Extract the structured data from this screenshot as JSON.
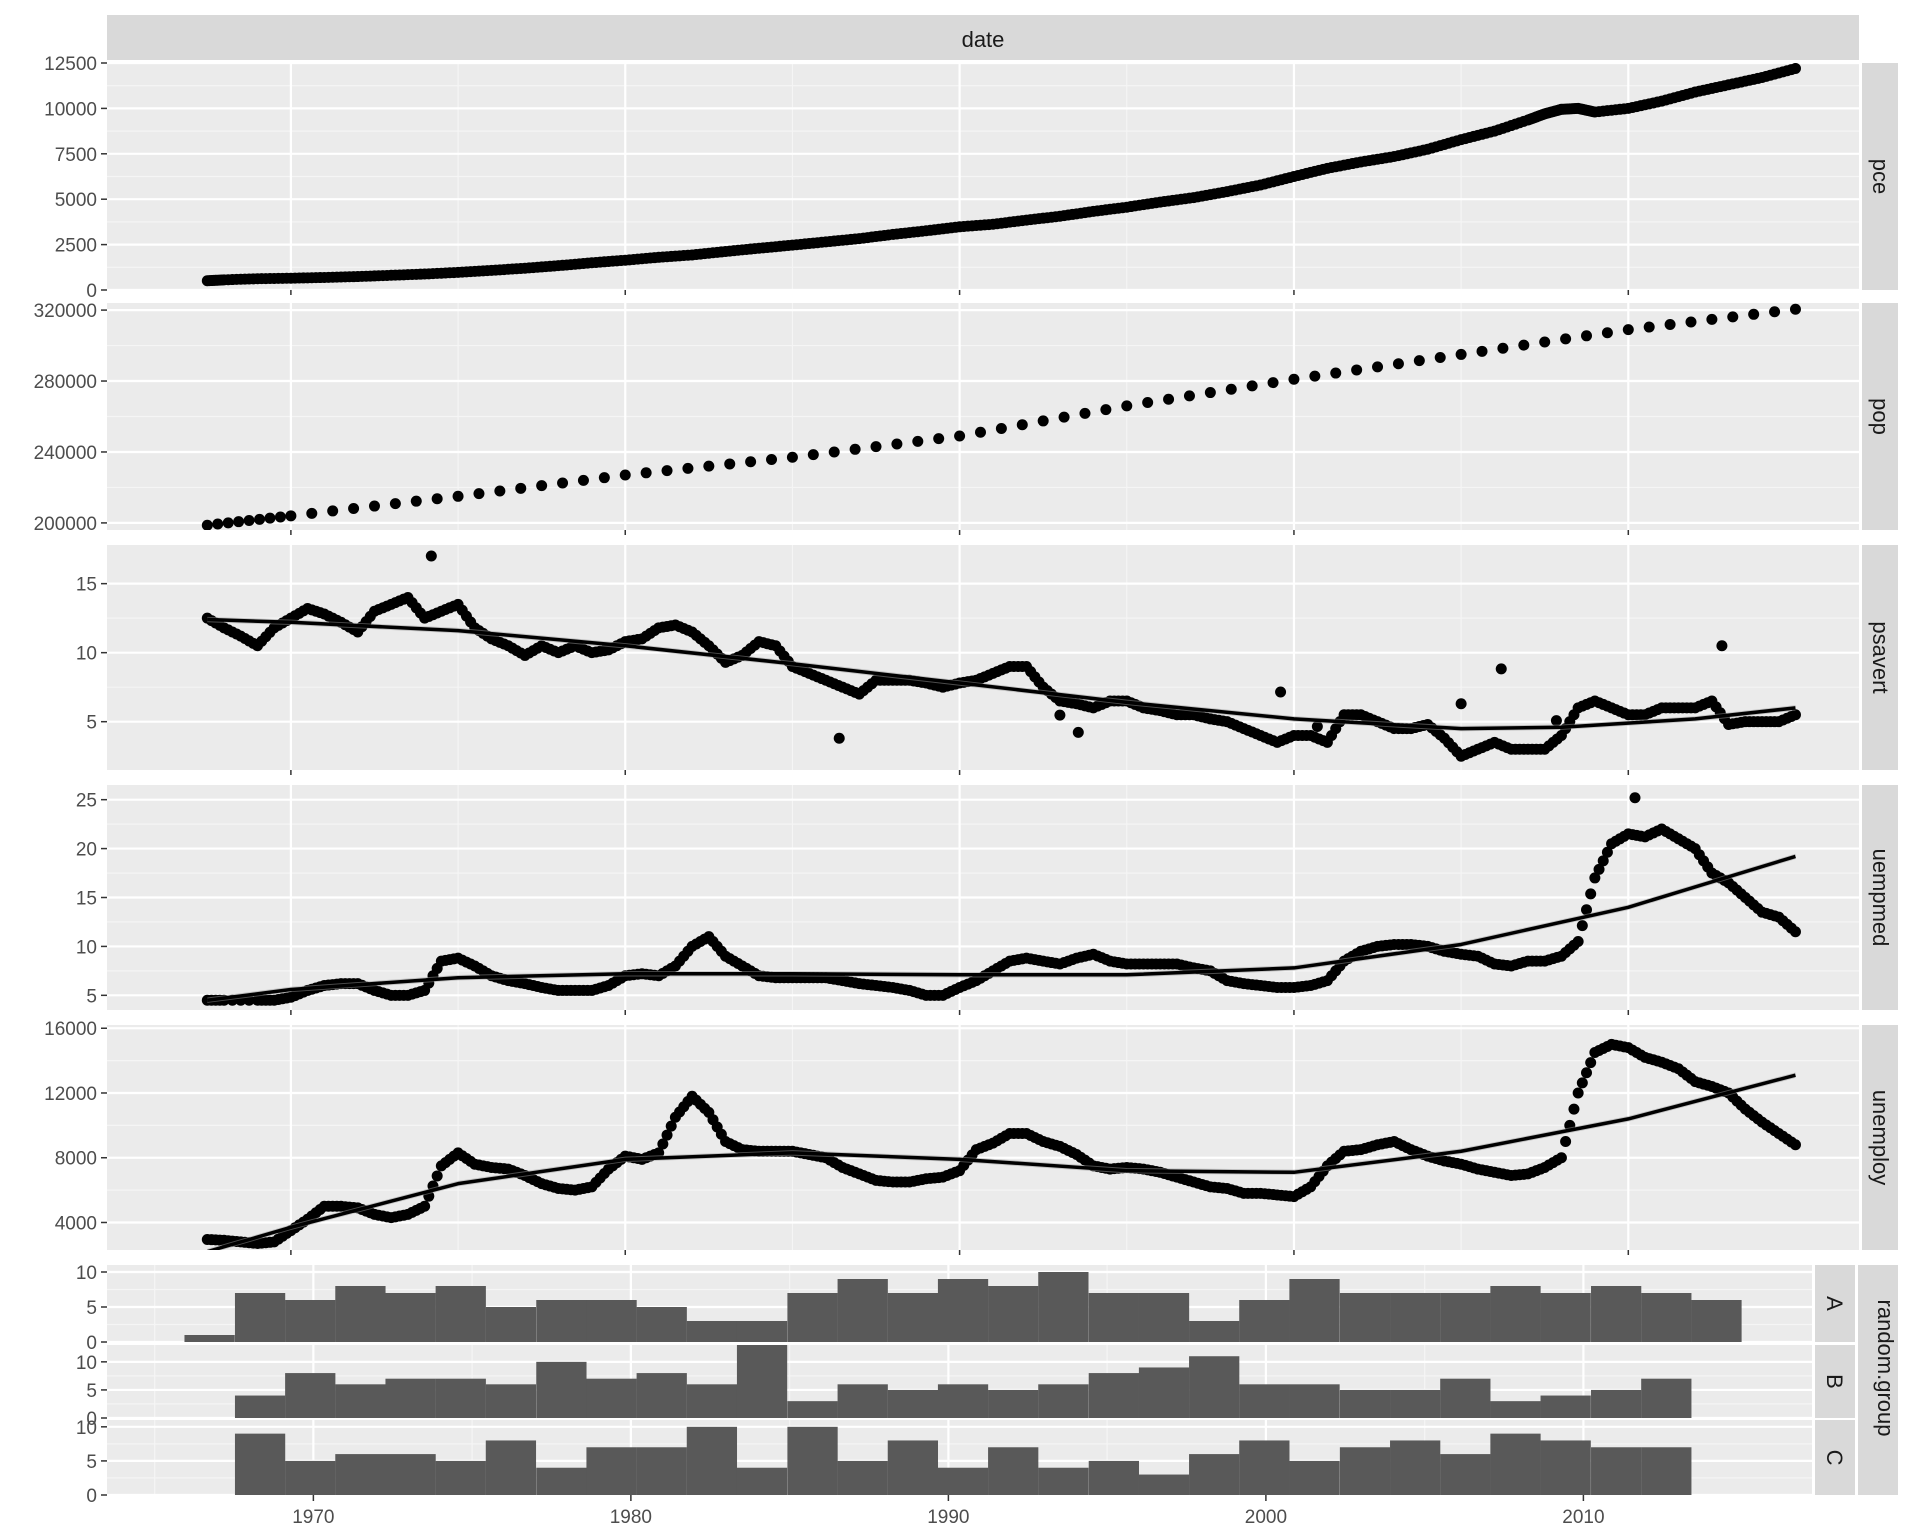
{
  "chart_data": {
    "type": "scatter",
    "title": "",
    "x_axis": {
      "label": "",
      "unit": "year",
      "ticks": [
        1970,
        1980,
        1990,
        2000,
        2010
      ]
    },
    "top_strip": "date",
    "grid": true,
    "scatter_panels": [
      {
        "name": "pce",
        "ylim": [
          0,
          12500
        ],
        "yticks": [
          0,
          2500,
          5000,
          7500,
          10000,
          12500
        ],
        "ytick_labels": [
          "0",
          "2500",
          "5000",
          "7500",
          "10000",
          "12500"
        ],
        "smooth": false,
        "points_x": [
          1967.5,
          1968,
          1969,
          1970,
          1971,
          1972,
          1973,
          1974,
          1975,
          1976,
          1977,
          1978,
          1979,
          1980,
          1981,
          1982,
          1983,
          1984,
          1985,
          1986,
          1987,
          1988,
          1989,
          1990,
          1991,
          1992,
          1993,
          1994,
          1995,
          1996,
          1997,
          1998,
          1999,
          2000,
          2001,
          2002,
          2003,
          2004,
          2005,
          2006,
          2007,
          2007.5,
          2008,
          2008.5,
          2009,
          2010,
          2011,
          2012,
          2013,
          2014,
          2015
        ],
        "points_y": [
          507,
          560,
          620,
          650,
          690,
          740,
          810,
          880,
          970,
          1080,
          1200,
          1340,
          1500,
          1640,
          1800,
          1930,
          2120,
          2300,
          2470,
          2650,
          2830,
          3060,
          3260,
          3480,
          3620,
          3850,
          4060,
          4330,
          4560,
          4840,
          5090,
          5420,
          5780,
          6250,
          6700,
          7050,
          7350,
          7750,
          8280,
          8750,
          9360,
          9700,
          9950,
          10000,
          9800,
          10000,
          10400,
          10900,
          11300,
          11700,
          12200
        ],
        "fit_x": [],
        "fit_y": []
      },
      {
        "name": "pop",
        "ylim": [
          196000,
          324000
        ],
        "yticks": [
          200000,
          240000,
          280000,
          320000
        ],
        "ytick_labels": [
          "200000",
          "240000",
          "280000",
          "320000"
        ],
        "smooth": false,
        "points_x": [
          1967.5,
          1970,
          1975,
          1980,
          1985,
          1990,
          1995,
          2000,
          2005,
          2010,
          2015
        ],
        "points_y": [
          198700,
          204000,
          215000,
          227000,
          237000,
          249000,
          266000,
          281000,
          295000,
          309000,
          320500
        ],
        "fit_x": [],
        "fit_y": []
      },
      {
        "name": "psavert",
        "ylim": [
          1.5,
          17.8
        ],
        "yticks": [
          5,
          10,
          15
        ],
        "ytick_labels": [
          "5",
          "10",
          "15"
        ],
        "smooth": true,
        "points_x": [
          1967.5,
          1968,
          1968.5,
          1969,
          1969.5,
          1970,
          1970.5,
          1971,
          1971.5,
          1972,
          1972.5,
          1973,
          1973.5,
          1974,
          1974.5,
          1975,
          1975.5,
          1976,
          1976.5,
          1977,
          1977.5,
          1978,
          1978.5,
          1979,
          1979.5,
          1980,
          1980.5,
          1981,
          1981.5,
          1982,
          1982.5,
          1983,
          1983.5,
          1984,
          1984.5,
          1985,
          1985.5,
          1986,
          1986.5,
          1987,
          1987.5,
          1988,
          1988.5,
          1989,
          1989.5,
          1990,
          1990.5,
          1991,
          1991.5,
          1992,
          1992.5,
          1993,
          1993.5,
          1994,
          1994.5,
          1995,
          1995.5,
          1996,
          1996.5,
          1997,
          1997.5,
          1998,
          1998.5,
          1999,
          1999.5,
          2000,
          2000.5,
          2001,
          2001.5,
          2002,
          2002.5,
          2003,
          2003.5,
          2004,
          2004.5,
          2005,
          2005.5,
          2006,
          2006.5,
          2007,
          2007.5,
          2008,
          2008.5,
          2009,
          2009.5,
          2010,
          2010.5,
          2011,
          2011.5,
          2012,
          2012.5,
          2013,
          2013.5,
          2014,
          2014.5,
          2015,
          1974.2,
          1986.4,
          2012.8,
          2005
        ],
        "points_y": [
          12.5,
          11.8,
          11.2,
          10.5,
          11.8,
          12.5,
          13.2,
          12.8,
          12.2,
          11.5,
          13,
          13.5,
          14,
          12.5,
          13,
          13.5,
          11.8,
          11,
          10.5,
          9.8,
          10.5,
          10,
          10.5,
          10,
          10.2,
          10.8,
          11,
          11.8,
          12,
          11.5,
          10.5,
          9.3,
          9.8,
          10.8,
          10.5,
          9,
          8.5,
          8,
          7.5,
          7,
          8,
          8,
          8,
          7.8,
          7.5,
          7.8,
          8,
          8.5,
          9,
          9,
          7.5,
          6.5,
          6.3,
          6,
          6.5,
          6.5,
          6,
          5.8,
          5.5,
          5.5,
          5.2,
          5,
          4.5,
          4,
          3.5,
          4,
          4,
          3.5,
          5.5,
          5.5,
          5,
          4.5,
          4.5,
          4.8,
          3.8,
          2.5,
          3,
          3.5,
          3,
          3,
          3,
          4,
          6,
          6.5,
          6,
          5.5,
          5.5,
          6,
          6,
          6,
          6.5,
          4.8,
          5,
          5,
          5,
          5.5,
          17,
          3.8,
          10.5,
          6.3
        ],
        "fit_x": [
          1967.5,
          1970,
          1975,
          1980,
          1985,
          1990,
          1995,
          2000,
          2005,
          2008,
          2012,
          2015
        ],
        "fit_y": [
          12.4,
          12.2,
          11.6,
          10.5,
          9.2,
          7.8,
          6.4,
          5.2,
          4.5,
          4.6,
          5.2,
          6
        ]
      },
      {
        "name": "uempmed",
        "ylim": [
          3.5,
          26.5
        ],
        "yticks": [
          5,
          10,
          15,
          20,
          25
        ],
        "ytick_labels": [
          "5",
          "10",
          "15",
          "20",
          "25"
        ],
        "smooth": true,
        "points_x": [
          1967.5,
          1968,
          1969,
          1969.5,
          1970,
          1970.5,
          1971,
          1971.5,
          1972,
          1972.5,
          1973,
          1973.5,
          1974,
          1974.5,
          1975,
          1975.5,
          1976,
          1976.5,
          1977,
          1977.5,
          1978,
          1978.5,
          1979,
          1979.5,
          1980,
          1980.5,
          1981,
          1981.5,
          1982,
          1982.5,
          1983,
          1983.5,
          1984,
          1984.5,
          1985,
          1985.5,
          1986,
          1986.5,
          1987,
          1987.5,
          1988,
          1988.5,
          1989,
          1989.5,
          1990,
          1990.5,
          1991,
          1991.5,
          1992,
          1992.5,
          1993,
          1993.5,
          1994,
          1994.5,
          1995,
          1995.5,
          1996,
          1996.5,
          1997,
          1997.5,
          1998,
          1998.5,
          1999,
          1999.5,
          2000,
          2000.5,
          2001,
          2001.5,
          2002,
          2002.5,
          2003,
          2003.5,
          2004,
          2004.5,
          2005,
          2005.5,
          2006,
          2006.5,
          2007,
          2007.5,
          2008,
          2008.5,
          2009,
          2009.5,
          2010,
          2010.5,
          2011,
          2011.5,
          2012,
          2012.5,
          2013,
          2013.5,
          2014,
          2014.5,
          2015,
          2010.2
        ],
        "points_y": [
          4.5,
          4.5,
          4.5,
          4.5,
          4.8,
          5.5,
          6,
          6.2,
          6.2,
          5.5,
          5,
          5,
          5.5,
          8.5,
          8.8,
          8,
          7,
          6.5,
          6.2,
          5.8,
          5.5,
          5.5,
          5.5,
          6,
          7,
          7.2,
          7,
          8,
          10,
          11,
          9,
          8,
          7,
          6.8,
          6.8,
          6.8,
          6.8,
          6.5,
          6.2,
          6,
          5.8,
          5.5,
          5,
          5,
          5.8,
          6.5,
          7.5,
          8.5,
          8.8,
          8.5,
          8.2,
          8.8,
          9.2,
          8.5,
          8.2,
          8.2,
          8.2,
          8.2,
          7.8,
          7.5,
          6.5,
          6.2,
          6,
          5.8,
          5.8,
          6,
          6.5,
          8.5,
          9.5,
          10,
          10.2,
          10.2,
          10,
          9.5,
          9.2,
          9,
          8.2,
          8,
          8.5,
          8.5,
          9,
          10.5,
          17,
          20.5,
          21.5,
          21.2,
          22,
          21,
          20,
          17.5,
          16.5,
          15,
          13.5,
          13,
          11.5,
          25.2
        ],
        "fit_x": [
          1967.5,
          1970,
          1975,
          1980,
          1985,
          1990,
          1995,
          2000,
          2005,
          2010,
          2015
        ],
        "fit_y": [
          4.5,
          5.6,
          6.8,
          7.2,
          7.2,
          7.1,
          7.1,
          7.8,
          10.2,
          14,
          19.2
        ]
      },
      {
        "name": "unemploy",
        "ylim": [
          2300,
          16200
        ],
        "yticks": [
          4000,
          8000,
          12000,
          16000
        ],
        "ytick_labels": [
          "4000",
          "8000",
          "12000",
          "16000"
        ],
        "smooth": true,
        "points_x": [
          1967.5,
          1968,
          1968.5,
          1969,
          1969.5,
          1970,
          1970.5,
          1971,
          1971.5,
          1972,
          1972.5,
          1973,
          1973.5,
          1974,
          1974.5,
          1975,
          1975.5,
          1976,
          1976.5,
          1977,
          1977.5,
          1978,
          1978.5,
          1979,
          1979.5,
          1980,
          1980.5,
          1981,
          1981.5,
          1982,
          1982.5,
          1983,
          1983.5,
          1984,
          1984.5,
          1985,
          1985.5,
          1986,
          1986.5,
          1987,
          1987.5,
          1988,
          1988.5,
          1989,
          1989.5,
          1990,
          1990.5,
          1991,
          1991.5,
          1992,
          1992.5,
          1993,
          1993.5,
          1994,
          1994.5,
          1995,
          1995.5,
          1996,
          1996.5,
          1997,
          1997.5,
          1998,
          1998.5,
          1999,
          1999.5,
          2000,
          2000.5,
          2001,
          2001.5,
          2002,
          2002.5,
          2003,
          2003.5,
          2004,
          2004.5,
          2005,
          2005.5,
          2006,
          2006.5,
          2007,
          2007.5,
          2008,
          2008.5,
          2009,
          2009.5,
          2010,
          2010.5,
          2011,
          2011.5,
          2012,
          2012.5,
          2013,
          2013.5,
          2014,
          2014.5,
          2015
        ],
        "points_y": [
          2950,
          2900,
          2800,
          2700,
          2800,
          3500,
          4200,
          5000,
          5000,
          4900,
          4500,
          4300,
          4500,
          5000,
          7500,
          8300,
          7600,
          7400,
          7300,
          6900,
          6400,
          6100,
          6000,
          6200,
          7300,
          8100,
          7900,
          8300,
          10500,
          11800,
          10800,
          9000,
          8500,
          8400,
          8400,
          8400,
          8200,
          8000,
          7400,
          7000,
          6600,
          6500,
          6500,
          6700,
          6800,
          7200,
          8500,
          8900,
          9500,
          9500,
          9000,
          8700,
          8200,
          7500,
          7300,
          7400,
          7300,
          7100,
          6800,
          6500,
          6200,
          6100,
          5800,
          5800,
          5700,
          5600,
          6200,
          7500,
          8400,
          8500,
          8800,
          9000,
          8500,
          8100,
          7800,
          7600,
          7300,
          7100,
          6900,
          7000,
          7400,
          8000,
          12000,
          14500,
          15000,
          14800,
          14200,
          13900,
          13500,
          12700,
          12400,
          12000,
          11000,
          10200,
          9500,
          8800
        ],
        "fit_x": [
          1967.5,
          1970,
          1975,
          1980,
          1985,
          1990,
          1995,
          2000,
          2005,
          2010,
          2015
        ],
        "fit_y": [
          2200,
          3700,
          6400,
          7900,
          8300,
          7900,
          7200,
          7100,
          8400,
          10400,
          13100
        ]
      }
    ],
    "facet_label": "random.group",
    "bar_panels": [
      {
        "name": "A",
        "ylim": [
          0,
          11
        ],
        "yticks": [
          0,
          5,
          10
        ],
        "ytick_labels": [
          "0",
          "5",
          "10"
        ],
        "bar_starts": [
          1965.94,
          1967.53,
          1969.11,
          1970.69,
          1972.27,
          1973.85,
          1975.43,
          1977.02,
          1978.6,
          1980.18,
          1981.76,
          1983.34,
          1984.93,
          1986.51,
          1988.09,
          1989.67,
          1991.25,
          1992.83,
          1994.42,
          1996.0,
          1997.58,
          1999.16,
          2000.74,
          2002.33,
          2003.91,
          2005.49,
          2007.07,
          2008.65,
          2010.24,
          2011.82,
          2013.4
        ],
        "values": [
          1,
          7,
          6,
          8,
          7,
          8,
          5,
          6,
          6,
          5,
          3,
          3,
          7,
          9,
          7,
          9,
          8,
          10,
          7,
          7,
          3,
          6,
          9,
          7,
          7,
          7,
          8,
          7,
          8,
          7,
          6
        ]
      },
      {
        "name": "B",
        "ylim": [
          0,
          13
        ],
        "yticks": [
          0,
          5,
          10
        ],
        "ytick_labels": [
          "0",
          "5",
          "10"
        ],
        "bar_starts": [
          1965.94,
          1967.53,
          1969.11,
          1970.69,
          1972.27,
          1973.85,
          1975.43,
          1977.02,
          1978.6,
          1980.18,
          1981.76,
          1983.34,
          1984.93,
          1986.51,
          1988.09,
          1989.67,
          1991.25,
          1992.83,
          1994.42,
          1996.0,
          1997.58,
          1999.16,
          2000.74,
          2002.33,
          2003.91,
          2005.49,
          2007.07,
          2008.65,
          2010.24,
          2011.82,
          2013.4
        ],
        "values": [
          0,
          4,
          8,
          6,
          7,
          7,
          6,
          10,
          7,
          8,
          6,
          13,
          3,
          6,
          5,
          6,
          5,
          6,
          8,
          9,
          11,
          6,
          6,
          5,
          5,
          7,
          3,
          4,
          5,
          7,
          0
        ]
      },
      {
        "name": "C",
        "ylim": [
          0,
          11
        ],
        "yticks": [
          0,
          5,
          10
        ],
        "ytick_labels": [
          "0",
          "5",
          "10"
        ],
        "bar_starts": [
          1965.94,
          1967.53,
          1969.11,
          1970.69,
          1972.27,
          1973.85,
          1975.43,
          1977.02,
          1978.6,
          1980.18,
          1981.76,
          1983.34,
          1984.93,
          1986.51,
          1988.09,
          1989.67,
          1991.25,
          1992.83,
          1994.42,
          1996.0,
          1997.58,
          1999.16,
          2000.74,
          2002.33,
          2003.91,
          2005.49,
          2007.07,
          2008.65,
          2010.24,
          2011.82,
          2013.4
        ],
        "values": [
          0,
          9,
          5,
          6,
          6,
          5,
          8,
          4,
          7,
          7,
          10,
          4,
          10,
          5,
          8,
          4,
          7,
          4,
          5,
          3,
          6,
          8,
          5,
          7,
          8,
          6,
          9,
          8,
          7,
          7,
          0
        ]
      }
    ],
    "bin_width": 1.583
  }
}
